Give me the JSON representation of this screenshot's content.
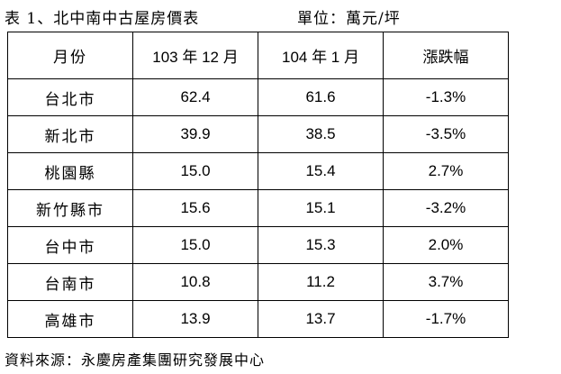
{
  "header": {
    "title": "表 1、北中南中古屋房價表",
    "unit": "單位：萬元/坪"
  },
  "table": {
    "columns": [
      "月份",
      "103 年 12 月",
      "104 年 1 月",
      "漲跌幅"
    ],
    "rows": [
      [
        "台北市",
        "62.4",
        "61.6",
        "-1.3%"
      ],
      [
        "新北市",
        "39.9",
        "38.5",
        "-3.5%"
      ],
      [
        "桃園縣",
        "15.0",
        "15.4",
        "2.7%"
      ],
      [
        "新竹縣市",
        "15.6",
        "15.1",
        "-3.2%"
      ],
      [
        "台中市",
        "15.0",
        "15.3",
        "2.0%"
      ],
      [
        "台南市",
        "10.8",
        "11.2",
        "3.7%"
      ],
      [
        "高雄市",
        "13.9",
        "13.7",
        "-1.7%"
      ]
    ]
  },
  "footer": {
    "source": "資料來源：永慶房產集團研究發展中心"
  }
}
